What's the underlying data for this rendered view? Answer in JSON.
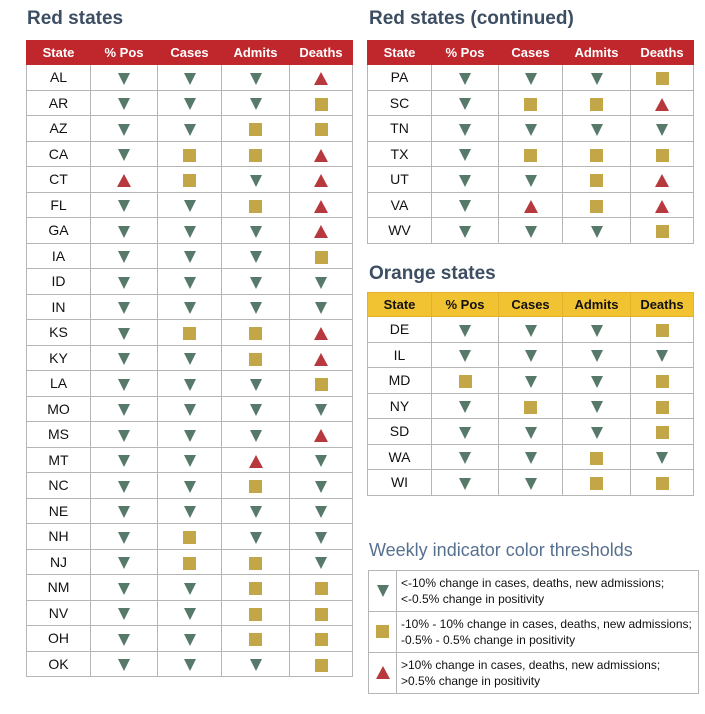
{
  "titles": {
    "red": "Red states",
    "red_cont": "Red states (continued)",
    "orange": "Orange states",
    "legend": "Weekly indicator color thresholds"
  },
  "columns": [
    "State",
    "% Pos",
    "Cases",
    "Admits",
    "Deaths"
  ],
  "colors": {
    "red_header": "#c0272d",
    "orange_header": "#f1c232",
    "decrease": "#56796a",
    "flat": "#c3a647",
    "increase": "#b8393d"
  },
  "icons": {
    "down": "down-triangle-icon",
    "flat": "square-icon",
    "up": "up-triangle-icon"
  },
  "red_states": [
    {
      "state": "AL",
      "pos": "down",
      "cases": "down",
      "admits": "down",
      "deaths": "up"
    },
    {
      "state": "AR",
      "pos": "down",
      "cases": "down",
      "admits": "down",
      "deaths": "flat"
    },
    {
      "state": "AZ",
      "pos": "down",
      "cases": "down",
      "admits": "flat",
      "deaths": "flat"
    },
    {
      "state": "CA",
      "pos": "down",
      "cases": "flat",
      "admits": "flat",
      "deaths": "up"
    },
    {
      "state": "CT",
      "pos": "up",
      "cases": "flat",
      "admits": "down",
      "deaths": "up"
    },
    {
      "state": "FL",
      "pos": "down",
      "cases": "down",
      "admits": "flat",
      "deaths": "up"
    },
    {
      "state": "GA",
      "pos": "down",
      "cases": "down",
      "admits": "down",
      "deaths": "up"
    },
    {
      "state": "IA",
      "pos": "down",
      "cases": "down",
      "admits": "down",
      "deaths": "flat"
    },
    {
      "state": "ID",
      "pos": "down",
      "cases": "down",
      "admits": "down",
      "deaths": "down"
    },
    {
      "state": "IN",
      "pos": "down",
      "cases": "down",
      "admits": "down",
      "deaths": "down"
    },
    {
      "state": "KS",
      "pos": "down",
      "cases": "flat",
      "admits": "flat",
      "deaths": "up"
    },
    {
      "state": "KY",
      "pos": "down",
      "cases": "down",
      "admits": "flat",
      "deaths": "up"
    },
    {
      "state": "LA",
      "pos": "down",
      "cases": "down",
      "admits": "down",
      "deaths": "flat"
    },
    {
      "state": "MO",
      "pos": "down",
      "cases": "down",
      "admits": "down",
      "deaths": "down"
    },
    {
      "state": "MS",
      "pos": "down",
      "cases": "down",
      "admits": "down",
      "deaths": "up"
    },
    {
      "state": "MT",
      "pos": "down",
      "cases": "down",
      "admits": "up",
      "deaths": "down"
    },
    {
      "state": "NC",
      "pos": "down",
      "cases": "down",
      "admits": "flat",
      "deaths": "down"
    },
    {
      "state": "NE",
      "pos": "down",
      "cases": "down",
      "admits": "down",
      "deaths": "down"
    },
    {
      "state": "NH",
      "pos": "down",
      "cases": "flat",
      "admits": "down",
      "deaths": "down"
    },
    {
      "state": "NJ",
      "pos": "down",
      "cases": "flat",
      "admits": "flat",
      "deaths": "down"
    },
    {
      "state": "NM",
      "pos": "down",
      "cases": "down",
      "admits": "flat",
      "deaths": "flat"
    },
    {
      "state": "NV",
      "pos": "down",
      "cases": "down",
      "admits": "flat",
      "deaths": "flat"
    },
    {
      "state": "OH",
      "pos": "down",
      "cases": "down",
      "admits": "flat",
      "deaths": "flat"
    },
    {
      "state": "OK",
      "pos": "down",
      "cases": "down",
      "admits": "down",
      "deaths": "flat"
    }
  ],
  "red_states_cont": [
    {
      "state": "PA",
      "pos": "down",
      "cases": "down",
      "admits": "down",
      "deaths": "flat"
    },
    {
      "state": "SC",
      "pos": "down",
      "cases": "flat",
      "admits": "flat",
      "deaths": "up"
    },
    {
      "state": "TN",
      "pos": "down",
      "cases": "down",
      "admits": "down",
      "deaths": "down"
    },
    {
      "state": "TX",
      "pos": "down",
      "cases": "flat",
      "admits": "flat",
      "deaths": "flat"
    },
    {
      "state": "UT",
      "pos": "down",
      "cases": "down",
      "admits": "flat",
      "deaths": "up"
    },
    {
      "state": "VA",
      "pos": "down",
      "cases": "up",
      "admits": "flat",
      "deaths": "up"
    },
    {
      "state": "WV",
      "pos": "down",
      "cases": "down",
      "admits": "down",
      "deaths": "flat"
    }
  ],
  "orange_states": [
    {
      "state": "DE",
      "pos": "down",
      "cases": "down",
      "admits": "down",
      "deaths": "flat"
    },
    {
      "state": "IL",
      "pos": "down",
      "cases": "down",
      "admits": "down",
      "deaths": "down"
    },
    {
      "state": "MD",
      "pos": "flat",
      "cases": "down",
      "admits": "down",
      "deaths": "flat"
    },
    {
      "state": "NY",
      "pos": "down",
      "cases": "flat",
      "admits": "down",
      "deaths": "flat"
    },
    {
      "state": "SD",
      "pos": "down",
      "cases": "down",
      "admits": "down",
      "deaths": "flat"
    },
    {
      "state": "WA",
      "pos": "down",
      "cases": "down",
      "admits": "flat",
      "deaths": "down"
    },
    {
      "state": "WI",
      "pos": "down",
      "cases": "down",
      "admits": "flat",
      "deaths": "flat"
    }
  ],
  "legend": [
    {
      "symbol": "down",
      "text": "<-10% change in cases, deaths, new admissions; <-0.5% change in positivity"
    },
    {
      "symbol": "flat",
      "text": "-10% - 10% change in cases, deaths, new admissions; -0.5% - 0.5% change in positivity"
    },
    {
      "symbol": "up",
      "text": ">10% change in cases, deaths, new admissions; >0.5% change in positivity"
    }
  ]
}
